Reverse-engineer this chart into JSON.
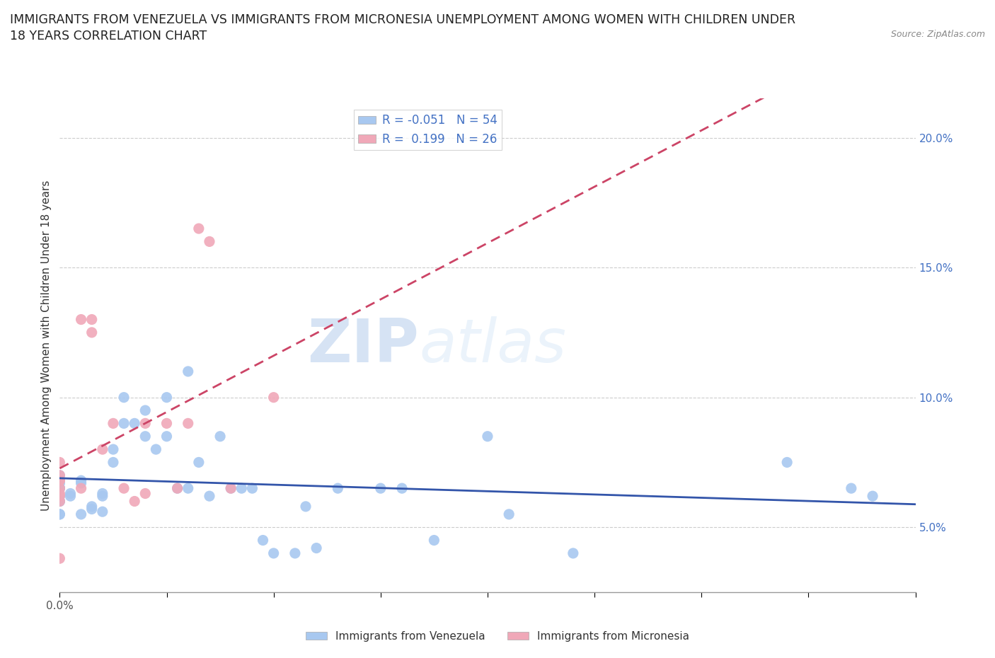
{
  "title_line1": "IMMIGRANTS FROM VENEZUELA VS IMMIGRANTS FROM MICRONESIA UNEMPLOYMENT AMONG WOMEN WITH CHILDREN UNDER",
  "title_line2": "18 YEARS CORRELATION CHART",
  "source": "Source: ZipAtlas.com",
  "ylabel": "Unemployment Among Women with Children Under 18 years",
  "xlim": [
    0.0,
    0.4
  ],
  "ylim": [
    0.025,
    0.215
  ],
  "xticks": [
    0.0,
    0.05,
    0.1,
    0.15,
    0.2,
    0.25,
    0.3,
    0.35,
    0.4
  ],
  "xticklabels_visible": {
    "0.0": "0.0%"
  },
  "ytick_positions": [
    0.05,
    0.1,
    0.15,
    0.2
  ],
  "ytick_labels": [
    "5.0%",
    "10.0%",
    "15.0%",
    "20.0%"
  ],
  "venezuela_color": "#a8c8f0",
  "micronesia_color": "#f0a8b8",
  "trend_venezuela_color": "#3355aa",
  "trend_micronesia_color": "#cc4466",
  "R_venezuela": -0.051,
  "N_venezuela": 54,
  "R_micronesia": 0.199,
  "N_micronesia": 26,
  "watermark_zip": "ZIP",
  "watermark_atlas": "atlas",
  "venezuela_x": [
    0.0,
    0.0,
    0.0,
    0.0,
    0.0,
    0.0,
    0.0,
    0.0,
    0.0,
    0.0,
    0.005,
    0.005,
    0.01,
    0.01,
    0.01,
    0.015,
    0.015,
    0.02,
    0.02,
    0.02,
    0.025,
    0.025,
    0.03,
    0.03,
    0.035,
    0.04,
    0.04,
    0.045,
    0.05,
    0.05,
    0.055,
    0.06,
    0.06,
    0.065,
    0.07,
    0.075,
    0.08,
    0.085,
    0.09,
    0.095,
    0.1,
    0.11,
    0.115,
    0.12,
    0.13,
    0.15,
    0.16,
    0.175,
    0.2,
    0.21,
    0.24,
    0.34,
    0.37,
    0.38
  ],
  "venezuela_y": [
    0.065,
    0.065,
    0.065,
    0.067,
    0.062,
    0.06,
    0.055,
    0.06,
    0.07,
    0.055,
    0.063,
    0.062,
    0.055,
    0.068,
    0.067,
    0.058,
    0.057,
    0.062,
    0.063,
    0.056,
    0.08,
    0.075,
    0.1,
    0.09,
    0.09,
    0.085,
    0.095,
    0.08,
    0.085,
    0.1,
    0.065,
    0.11,
    0.065,
    0.075,
    0.062,
    0.085,
    0.065,
    0.065,
    0.065,
    0.045,
    0.04,
    0.04,
    0.058,
    0.042,
    0.065,
    0.065,
    0.065,
    0.045,
    0.085,
    0.055,
    0.04,
    0.075,
    0.065,
    0.062
  ],
  "micronesia_x": [
    0.0,
    0.0,
    0.0,
    0.0,
    0.0,
    0.0,
    0.0,
    0.0,
    0.0,
    0.01,
    0.01,
    0.015,
    0.015,
    0.02,
    0.025,
    0.03,
    0.035,
    0.04,
    0.04,
    0.05,
    0.055,
    0.06,
    0.065,
    0.07,
    0.08,
    0.1
  ],
  "micronesia_y": [
    0.065,
    0.068,
    0.068,
    0.062,
    0.06,
    0.07,
    0.075,
    0.063,
    0.038,
    0.065,
    0.13,
    0.13,
    0.125,
    0.08,
    0.09,
    0.065,
    0.06,
    0.09,
    0.063,
    0.09,
    0.065,
    0.09,
    0.165,
    0.16,
    0.065,
    0.1
  ]
}
